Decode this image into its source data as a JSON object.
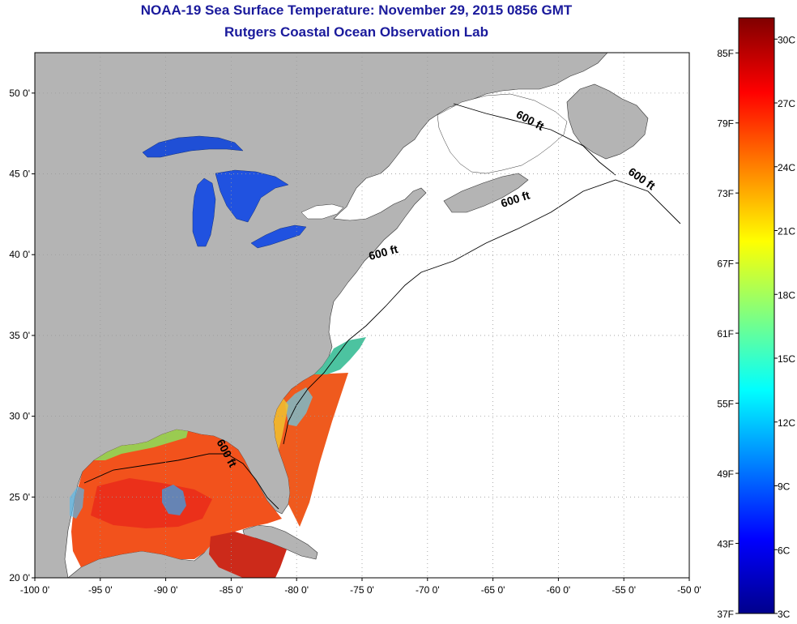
{
  "title": {
    "line1": "NOAA-19 Sea Surface Temperature:  November 29, 2015 0856 GMT",
    "line2": "Rutgers Coastal Ocean Observation Lab"
  },
  "map": {
    "lon_range": [
      -100,
      -50
    ],
    "lat_range": [
      20,
      52.5
    ],
    "lat_ticks": [
      {
        "lat": 20,
        "label": "20 0'"
      },
      {
        "lat": 25,
        "label": "25 0'"
      },
      {
        "lat": 30,
        "label": "30 0'"
      },
      {
        "lat": 35,
        "label": "35 0'"
      },
      {
        "lat": 40,
        "label": "40 0'"
      },
      {
        "lat": 45,
        "label": "45 0'"
      },
      {
        "lat": 50,
        "label": "50 0'"
      }
    ],
    "lon_ticks": [
      {
        "lon": -100,
        "label": "-100 0'"
      },
      {
        "lon": -95,
        "label": "-95 0'"
      },
      {
        "lon": -90,
        "label": "-90 0'"
      },
      {
        "lon": -85,
        "label": "-85 0'"
      },
      {
        "lon": -80,
        "label": "-80 0'"
      },
      {
        "lon": -75,
        "label": "-75 0'"
      },
      {
        "lon": -70,
        "label": "-70 0'"
      },
      {
        "lon": -65,
        "label": "-65 0'"
      },
      {
        "lon": -60,
        "label": "-60 0'"
      },
      {
        "lon": -55,
        "label": "-55 0'"
      },
      {
        "lon": -50,
        "label": "-50 0'"
      }
    ],
    "contour_labels": [
      {
        "text": "600 ft",
        "lon": -62.3,
        "lat": 48.1,
        "rotate": 28
      },
      {
        "text": "600 ft",
        "lon": -53.8,
        "lat": 44.5,
        "rotate": 35
      },
      {
        "text": "600 ft",
        "lon": -63.2,
        "lat": 43.2,
        "rotate": -18
      },
      {
        "text": "600 ft",
        "lon": -73.3,
        "lat": 39.9,
        "rotate": -15
      },
      {
        "text": "600 ft",
        "lon": -85.6,
        "lat": 27.6,
        "rotate": 62
      }
    ],
    "colors": {
      "land": "#b4b4b4",
      "ocean": "#ffffff",
      "grid": "#9a9a9a",
      "lake_sst": "#1f4fd6",
      "contour": "#000000"
    }
  },
  "colorbar": {
    "range_c": [
      3,
      31
    ],
    "range_f": [
      37,
      88
    ],
    "f_labels": [
      "85F",
      "79F",
      "73F",
      "67F",
      "61F",
      "55F",
      "49F",
      "43F",
      "37F"
    ],
    "c_labels": [
      "30C",
      "27C",
      "24C",
      "21C",
      "18C",
      "15C",
      "12C",
      "9C",
      "6C",
      "3C"
    ],
    "stops": [
      "#00008c",
      "#0000ff",
      "#0080ff",
      "#00ffff",
      "#80ff80",
      "#ffff00",
      "#ff8000",
      "#ff0000",
      "#800000"
    ]
  }
}
